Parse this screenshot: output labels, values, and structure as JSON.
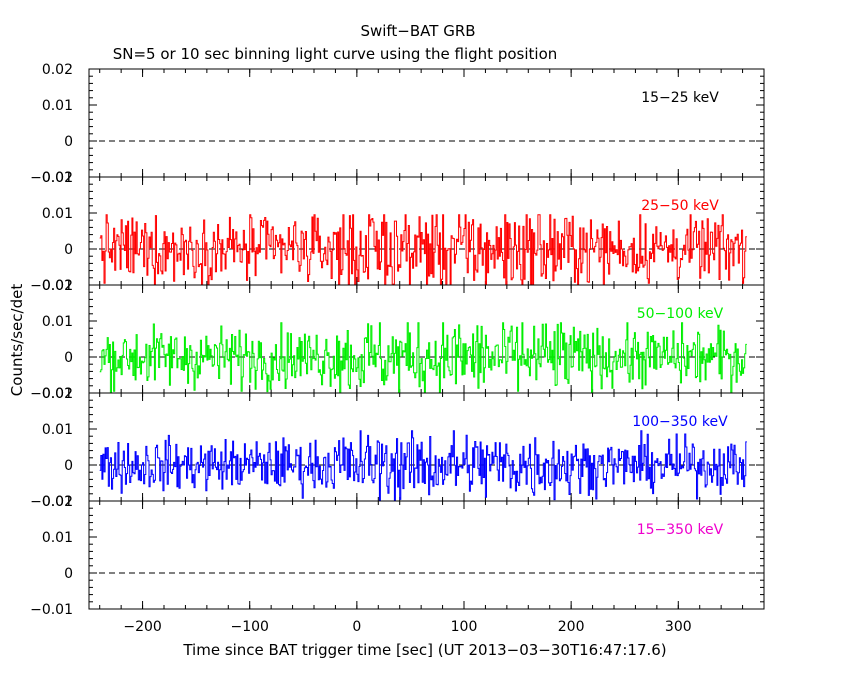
{
  "chart_data": {
    "type": "line",
    "title": "Swift−BAT GRB",
    "subtitle": "SN=5 or 10 sec binning light curve using the flight position",
    "xlabel": "Time since BAT trigger time [sec] (UT 2013−03−30T16:47:17.6)",
    "ylabel": "Counts/sec/det",
    "xlim": [
      -250,
      380
    ],
    "xticks": [
      -200,
      -100,
      0,
      100,
      200,
      300
    ],
    "xtick_labels": [
      "−200",
      "−100",
      "0",
      "100",
      "200",
      "300"
    ],
    "ylim": [
      -0.01,
      0.02
    ],
    "yticks": [
      -0.01,
      0,
      0.01,
      0.02
    ],
    "ytick_labels": [
      "−0.01",
      "0",
      "0.01",
      "0.02"
    ],
    "data_range": [
      -240,
      364
    ],
    "grid": false,
    "panels": [
      {
        "name": "15−25 keV",
        "color": "#000000",
        "has_data": false,
        "amp": 0
      },
      {
        "name": "25−50 keV",
        "color": "#ff0000",
        "has_data": true,
        "amp": 0.0085
      },
      {
        "name": "50−100 keV",
        "color": "#00ee00",
        "has_data": true,
        "amp": 0.0075
      },
      {
        "name": "100−350 keV",
        "color": "#0000ff",
        "has_data": true,
        "amp": 0.0065
      },
      {
        "name": "15−350 keV",
        "color": "#ee00cc",
        "has_data": false,
        "amp": 0
      }
    ]
  }
}
